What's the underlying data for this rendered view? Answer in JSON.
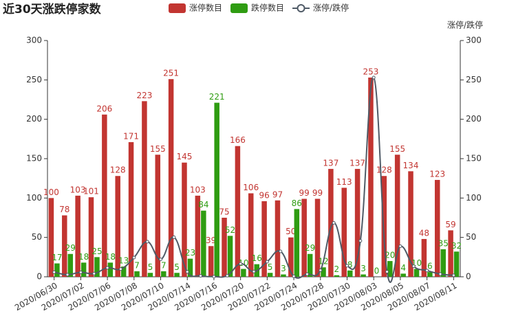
{
  "chart_data": {
    "type": "bar-line",
    "title": "近30天涨跌停家数",
    "y2_label": "涨停/跌停",
    "categories": [
      "2020/06/30",
      null,
      "2020/07/02",
      null,
      "2020/07/06",
      null,
      "2020/07/08",
      null,
      "2020/07/10",
      null,
      "2020/07/14",
      null,
      "2020/07/16",
      null,
      "2020/07/20",
      null,
      "2020/07/22",
      null,
      "2020/07/24",
      null,
      "2020/07/28",
      null,
      "2020/07/30",
      null,
      "2020/08/03",
      null,
      "2020/08/05",
      null,
      "2020/08/07",
      null,
      "2020/08/11"
    ],
    "series": [
      {
        "name": "涨停数目",
        "color": "#c23531",
        "type": "bar",
        "values": [
          100,
          78,
          103,
          101,
          206,
          128,
          171,
          223,
          155,
          251,
          145,
          103,
          39,
          75,
          166,
          106,
          96,
          97,
          50,
          99,
          99,
          137,
          113,
          137,
          253,
          128,
          155,
          134,
          48,
          123,
          59
        ]
      },
      {
        "name": "跌停数目",
        "color": "#2f9c12",
        "type": "bar",
        "values": [
          17,
          29,
          18,
          25,
          18,
          13,
          7,
          5,
          7,
          5,
          23,
          84,
          221,
          52,
          10,
          16,
          5,
          3,
          86,
          29,
          12,
          2,
          8,
          3,
          0,
          20,
          4,
          10,
          6,
          35,
          32
        ]
      },
      {
        "name": "涨停/跌停",
        "color": "#4f5a66",
        "type": "line",
        "axis": "y2",
        "values": [
          5.9,
          2.7,
          5.7,
          4.0,
          11.4,
          9.8,
          24.4,
          44.6,
          22.1,
          50.2,
          6.3,
          1.2,
          0.2,
          1.4,
          16.6,
          6.6,
          19.2,
          32.3,
          0.6,
          3.4,
          8.3,
          68.5,
          14.1,
          45.7,
          253,
          6.4,
          38.8,
          13.4,
          8.0,
          3.5,
          1.8
        ]
      }
    ],
    "ylim": [
      0,
      300
    ],
    "yticks": [
      0,
      50,
      100,
      150,
      200,
      250,
      300
    ],
    "y2lim": [
      0,
      300
    ],
    "y2ticks": [
      0,
      50,
      100,
      150,
      200,
      250,
      300
    ]
  }
}
